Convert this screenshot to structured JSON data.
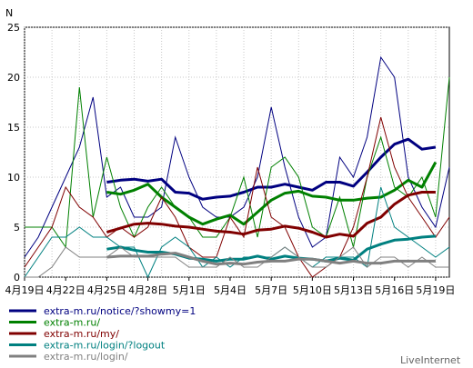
{
  "chart_data": {
    "type": "line",
    "ylabel": "N",
    "ylim": [
      0,
      25
    ],
    "yticks": [
      "0",
      "5",
      "10",
      "15",
      "20",
      "25"
    ],
    "xticks": [
      "4月19日",
      "4月22日",
      "4月25日",
      "4月28日",
      "5月1日",
      "5月4日",
      "5月7日",
      "5月10日",
      "5月13日",
      "5月16日",
      "5月19日"
    ],
    "grid": true,
    "legend_position": "bottom-left",
    "brand": "LiveInternet",
    "series": [
      {
        "name": "extra-m.ru/notice/?showmy=1",
        "color": "#000080",
        "daily": [
          2,
          4,
          7,
          10,
          13,
          18,
          8,
          9,
          6,
          6,
          7,
          14,
          10,
          7,
          6,
          6,
          7,
          10,
          17,
          11,
          6,
          3,
          4,
          12,
          10,
          14,
          22,
          20,
          10,
          7,
          5,
          11
        ],
        "avg_start": 6,
        "avg": [
          9.5,
          9.7,
          9.8,
          9.6,
          9.8,
          8.5,
          8.4,
          7.8,
          8,
          8.1,
          8.5,
          9,
          9,
          9.3,
          9,
          8.7,
          9.5,
          9.5,
          9.1,
          10.5,
          12,
          13.3,
          13.8,
          12.8,
          13
        ]
      },
      {
        "name": "extra-m.ru/",
        "color": "#008000",
        "daily": [
          5,
          5,
          5,
          3,
          19,
          6,
          12,
          7,
          4,
          7,
          9,
          7,
          6,
          4,
          4,
          6,
          10,
          4,
          11,
          12,
          10,
          5,
          4,
          8,
          3,
          10,
          14,
          9,
          8,
          10,
          6,
          20
        ],
        "avg_start": 6,
        "avg": [
          8.5,
          8.3,
          8.7,
          9.3,
          8,
          7,
          6,
          5.3,
          5.8,
          6.2,
          5.3,
          6.5,
          7.7,
          8.4,
          8.6,
          8.1,
          8,
          7.7,
          7.7,
          7.9,
          8,
          8.7,
          9.7,
          9,
          11.5
        ]
      },
      {
        "name": "extra-m.ru/my/",
        "color": "#800000",
        "daily": [
          1,
          3,
          5,
          9,
          7,
          6,
          4,
          5,
          4,
          5,
          8,
          6,
          3,
          2,
          2,
          6,
          4,
          11,
          6,
          5,
          2,
          0,
          1,
          2,
          5,
          10,
          16,
          11,
          8,
          6,
          4,
          6
        ],
        "avg_start": 6,
        "avg": [
          4.5,
          4.9,
          5.3,
          5.4,
          5.3,
          5.1,
          5,
          4.8,
          4.6,
          4.5,
          4.3,
          4.7,
          4.8,
          5.1,
          4.9,
          4.5,
          4,
          4.3,
          4.1,
          5.4,
          6,
          7.3,
          8.2,
          8.5,
          8.5
        ]
      },
      {
        "name": "extra-m.ru/login/?logout",
        "color": "#008080",
        "daily": [
          0,
          2,
          4,
          4,
          5,
          4,
          4,
          3,
          3,
          0,
          3,
          4,
          3,
          1,
          2,
          1,
          2,
          2,
          2,
          3,
          2,
          1,
          2,
          2,
          2,
          1,
          9,
          5,
          4,
          3,
          2,
          3
        ],
        "avg_start": 6,
        "avg": [
          2.8,
          3,
          2.7,
          2.5,
          2.5,
          2.3,
          1.9,
          1.8,
          1.6,
          1.8,
          1.8,
          2.1,
          1.8,
          2.1,
          1.9,
          1.8,
          1.6,
          1.9,
          1.7,
          2.8,
          3.3,
          3.7,
          3.8,
          4,
          4.1
        ]
      },
      {
        "name": "extra-m.ru/login/",
        "color": "#808080",
        "daily": [
          0,
          0,
          1,
          3,
          2,
          2,
          2,
          3,
          2,
          2,
          2,
          2,
          1,
          1,
          1,
          2,
          1,
          1,
          2,
          3,
          2,
          1,
          1,
          2,
          3,
          1,
          2,
          2,
          1,
          2,
          1,
          1
        ],
        "avg_start": 6,
        "avg": [
          2,
          2.1,
          2.1,
          2.1,
          2.3,
          2.4,
          2,
          1.6,
          1.3,
          1.4,
          1.3,
          1.5,
          1.6,
          1.6,
          1.8,
          1.8,
          1.6,
          1.4,
          1.6,
          1.4,
          1.4,
          1.6,
          1.6,
          1.6,
          1.6
        ]
      }
    ]
  }
}
